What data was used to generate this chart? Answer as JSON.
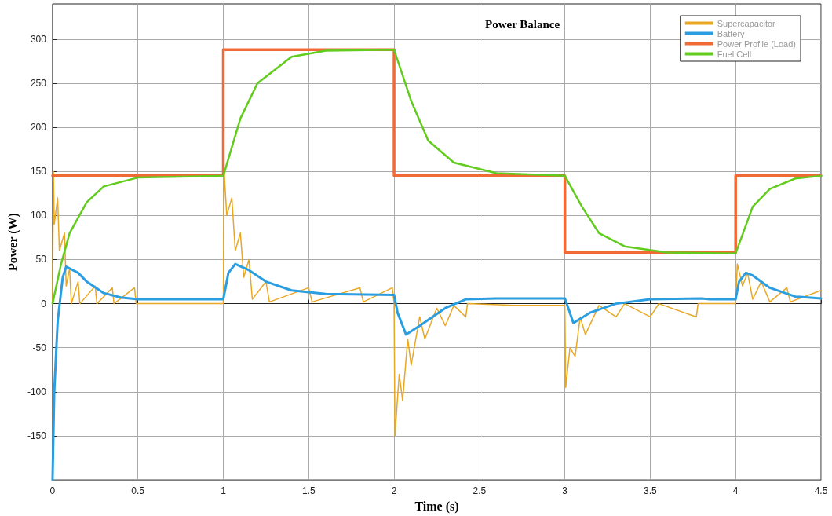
{
  "chart_data": {
    "type": "line",
    "title": "Power Balance",
    "xlabel": "Time (s)",
    "ylabel": "Power (W)",
    "xlim": [
      0,
      4.5
    ],
    "ylim": [
      -200,
      340
    ],
    "xticks": [
      0,
      0.5,
      1,
      1.5,
      2,
      2.5,
      3,
      3.5,
      4,
      4.5
    ],
    "yticks": [
      -150,
      -100,
      -50,
      0,
      50,
      100,
      150,
      200,
      250,
      300
    ],
    "grid": true,
    "legend": "top right",
    "marker": "none",
    "line_style": "solid",
    "series": [
      {
        "name": "Supercapacitor",
        "color": "#e8a825",
        "x": [
          0,
          0.005,
          0.01,
          0.03,
          0.04,
          0.07,
          0.08,
          0.1,
          0.11,
          0.15,
          0.16,
          0.25,
          0.26,
          0.35,
          0.36,
          0.48,
          0.49,
          0.75,
          1.0,
          1.005,
          1.02,
          1.05,
          1.07,
          1.1,
          1.12,
          1.15,
          1.17,
          1.25,
          1.27,
          1.5,
          1.52,
          1.8,
          1.82,
          1.99,
          2.0,
          2.005,
          2.03,
          2.05,
          2.08,
          2.1,
          2.15,
          2.18,
          2.25,
          2.3,
          2.35,
          2.42,
          2.43,
          2.7,
          3.0,
          3.005,
          3.03,
          3.06,
          3.09,
          3.12,
          3.2,
          3.3,
          3.35,
          3.5,
          3.55,
          3.77,
          3.78,
          4.0,
          4.01,
          4.04,
          4.07,
          4.1,
          4.15,
          4.2,
          4.3,
          4.32,
          4.5
        ],
        "values": [
          0,
          150,
          90,
          120,
          60,
          80,
          20,
          40,
          0,
          25,
          0,
          20,
          0,
          18,
          0,
          18,
          0,
          0,
          0,
          150,
          100,
          120,
          60,
          80,
          30,
          50,
          5,
          25,
          2,
          18,
          2,
          18,
          2,
          18,
          0,
          -150,
          -80,
          -110,
          -40,
          -70,
          -15,
          -40,
          -5,
          -25,
          -2,
          -15,
          0,
          -2,
          -2,
          -95,
          -50,
          -60,
          -15,
          -35,
          -2,
          -15,
          0,
          -15,
          0,
          -15,
          0,
          0,
          45,
          20,
          35,
          5,
          25,
          2,
          18,
          2,
          15
        ]
      },
      {
        "name": "Battery",
        "color": "#2a9ee0",
        "x": [
          0,
          0.01,
          0.03,
          0.06,
          0.08,
          0.15,
          0.2,
          0.3,
          0.4,
          0.5,
          1.0,
          1.03,
          1.07,
          1.15,
          1.25,
          1.4,
          1.6,
          2.0,
          2.02,
          2.07,
          2.15,
          2.3,
          2.42,
          2.6,
          3.0,
          3.02,
          3.05,
          3.15,
          3.3,
          3.5,
          3.8,
          3.85,
          4.0,
          4.02,
          4.06,
          4.1,
          4.2,
          4.35,
          4.5
        ],
        "values": [
          -200,
          -100,
          -20,
          30,
          42,
          35,
          25,
          12,
          7,
          5,
          5,
          35,
          45,
          38,
          25,
          15,
          11,
          10,
          -10,
          -35,
          -25,
          -5,
          5,
          6,
          6,
          -5,
          -22,
          -10,
          0,
          5,
          6,
          5,
          5,
          25,
          35,
          32,
          18,
          8,
          6
        ]
      },
      {
        "name": "Power Profile (Load)",
        "type": "step",
        "color": "#f06a35",
        "x": [
          0,
          1,
          2,
          3,
          4,
          4.5
        ],
        "values": [
          145,
          288,
          145,
          58,
          145,
          145
        ]
      },
      {
        "name": "Fuel Cell",
        "color": "#62cc1e",
        "x": [
          0,
          0.05,
          0.1,
          0.2,
          0.3,
          0.5,
          1.0,
          1.1,
          1.2,
          1.4,
          1.6,
          2.0,
          2.1,
          2.2,
          2.35,
          2.6,
          3.0,
          3.1,
          3.2,
          3.35,
          3.6,
          4.0,
          4.1,
          4.2,
          4.35,
          4.5
        ],
        "values": [
          0,
          45,
          80,
          115,
          133,
          143,
          145,
          210,
          250,
          280,
          287,
          288,
          230,
          185,
          160,
          148,
          145,
          110,
          80,
          65,
          58,
          57,
          110,
          130,
          142,
          145
        ]
      }
    ]
  }
}
